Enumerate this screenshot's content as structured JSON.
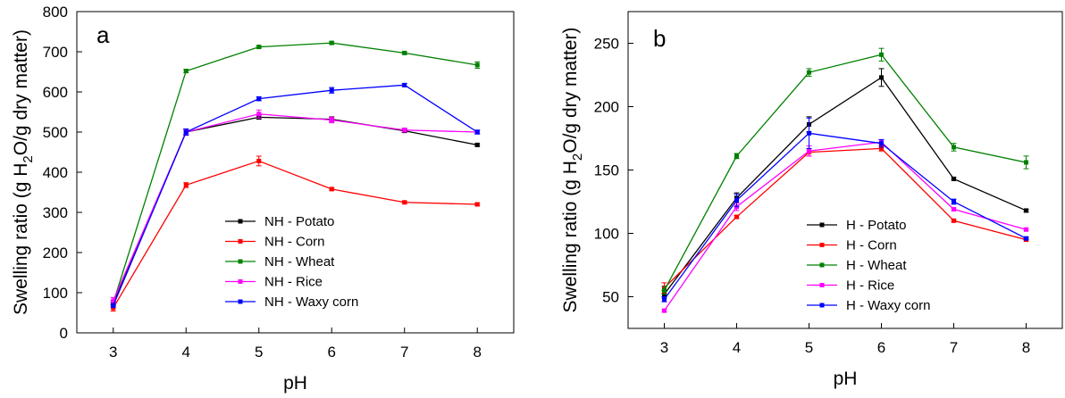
{
  "chart_data": [
    {
      "type": "line",
      "panel_label": "a",
      "xlabel": "pH",
      "ylabel": "Swelling ratio (g H",
      "ylabel_sub": "2",
      "ylabel_end": "O/g dry matter)",
      "x": [
        3,
        4,
        5,
        6,
        7,
        8
      ],
      "xlim": [
        2.5,
        8.5
      ],
      "ylim": [
        0,
        800
      ],
      "yticks": [
        0,
        100,
        200,
        300,
        400,
        500,
        600,
        700,
        800
      ],
      "grid": false,
      "legend_position": "bottom-right",
      "series": [
        {
          "name": "NH - Potato",
          "color": "#000000",
          "values": [
            72,
            500,
            537,
            532,
            503,
            468
          ],
          "errors": [
            5,
            6,
            5,
            6,
            4,
            3
          ]
        },
        {
          "name": "NH - Corn",
          "color": "#ff0000",
          "values": [
            62,
            368,
            428,
            358,
            325,
            320
          ],
          "errors": [
            8,
            6,
            12,
            3,
            3,
            3
          ]
        },
        {
          "name": "NH - Wheat",
          "color": "#008000",
          "values": [
            75,
            652,
            712,
            722,
            697,
            667
          ],
          "errors": [
            5,
            4,
            3,
            3,
            3,
            8
          ]
        },
        {
          "name": "NH - Rice",
          "color": "#ff00ff",
          "values": [
            80,
            500,
            545,
            530,
            505,
            500
          ],
          "errors": [
            8,
            6,
            10,
            7,
            5,
            3
          ]
        },
        {
          "name": "NH - Waxy corn",
          "color": "#0000ff",
          "values": [
            68,
            500,
            583,
            604,
            617,
            500
          ],
          "errors": [
            5,
            8,
            5,
            7,
            4,
            5
          ]
        }
      ]
    },
    {
      "type": "line",
      "panel_label": "b",
      "xlabel": "pH",
      "ylabel": "Swelling ratio (g H",
      "ylabel_sub": "2",
      "ylabel_end": "O/g dry matter)",
      "x": [
        3,
        4,
        5,
        6,
        7,
        8
      ],
      "xlim": [
        2.5,
        8.5
      ],
      "ylim": [
        25,
        275
      ],
      "yticks": [
        50,
        100,
        150,
        200,
        250
      ],
      "grid": false,
      "legend_position": "bottom-right",
      "series": [
        {
          "name": "H - Potato",
          "color": "#000000",
          "values": [
            52,
            128,
            186,
            223,
            143,
            118
          ],
          "errors": [
            3,
            4,
            6,
            7,
            1,
            1
          ]
        },
        {
          "name": "H - Corn",
          "color": "#ff0000",
          "values": [
            57,
            113,
            164,
            167,
            110,
            95
          ],
          "errors": [
            4,
            1,
            3,
            2,
            1,
            1
          ]
        },
        {
          "name": "H - Wheat",
          "color": "#008000",
          "values": [
            55,
            161,
            227,
            241,
            168,
            156
          ],
          "errors": [
            3,
            2,
            3,
            5,
            3,
            5
          ]
        },
        {
          "name": "H - Rice",
          "color": "#ff00ff",
          "values": [
            39,
            121,
            165,
            172,
            119,
            103
          ],
          "errors": [
            1,
            3,
            4,
            2,
            1,
            1
          ]
        },
        {
          "name": "H - Waxy corn",
          "color": "#0000ff",
          "values": [
            48,
            126,
            179,
            171,
            125,
            96
          ],
          "errors": [
            2,
            5,
            12,
            3,
            2,
            1
          ]
        }
      ]
    }
  ]
}
